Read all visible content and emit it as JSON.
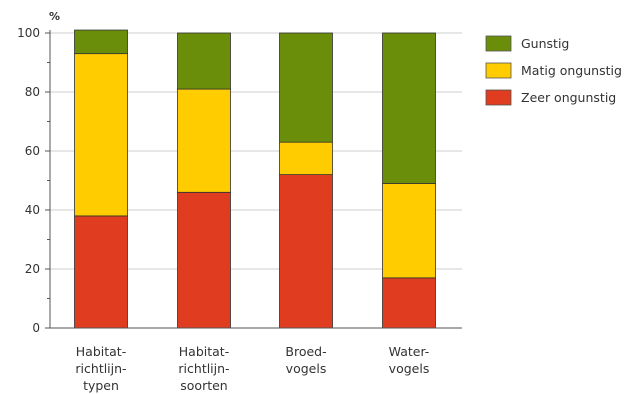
{
  "chart_data": {
    "type": "bar",
    "stacked": true,
    "unit_label": "%",
    "ylim": [
      0,
      100
    ],
    "yticks": [
      "0",
      "20",
      "40",
      "60",
      "80",
      "100"
    ],
    "categories": [
      [
        "Habitat-",
        "richtlijn-",
        "typen"
      ],
      [
        "Habitat-",
        "richtlijn-",
        "soorten"
      ],
      [
        "Broed-",
        "vogels"
      ],
      [
        "Water-",
        "vogels"
      ]
    ],
    "series": [
      {
        "name": "Zeer ongunstig",
        "color": "#e03c1f",
        "values": [
          38,
          46,
          52,
          17
        ]
      },
      {
        "name": "Matig ongunstig",
        "color": "#ffcc00",
        "values": [
          55,
          35,
          11,
          32
        ]
      },
      {
        "name": "Gunstig",
        "color": "#6b8e0a",
        "values": [
          8,
          19,
          37,
          51
        ]
      }
    ],
    "legend_order": [
      "Gunstig",
      "Matig ongunstig",
      "Zeer ongunstig"
    ],
    "legend_position": "top-right",
    "grid": true
  }
}
